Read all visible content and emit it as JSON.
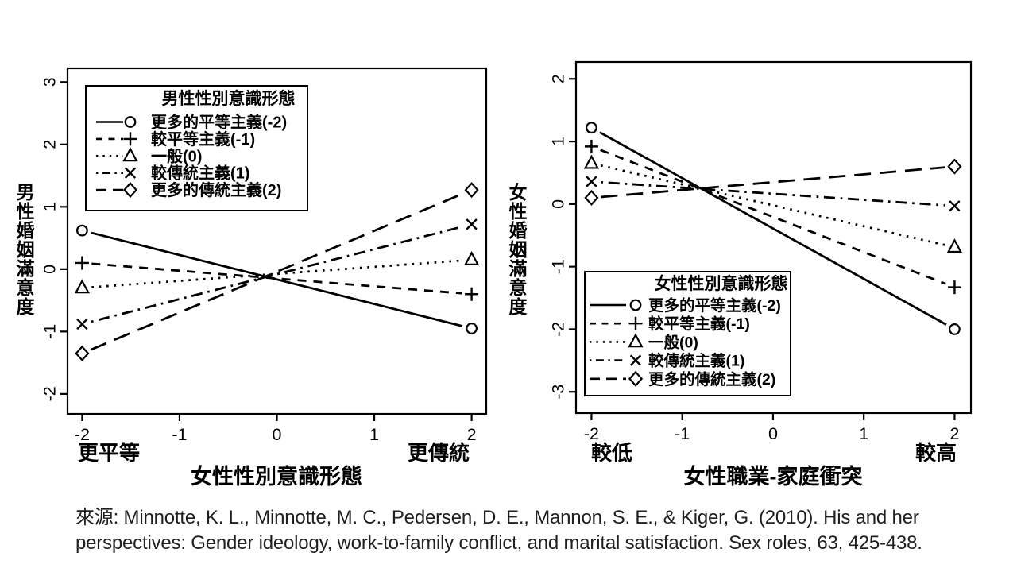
{
  "caption": {
    "lines": [
      "來源: Minnotte, K. L., Minnotte, M. C., Pedersen, D. E., Mannon, S. E., & Kiger, G. (2010). His and her",
      "perspectives: Gender ideology, work-to-family conflict, and marital satisfaction. Sex roles, 63, 425-438."
    ]
  },
  "colors": {
    "ink": "#000000",
    "background": "#ffffff",
    "caption_text": "#1f1f1f"
  },
  "chart_data": [
    {
      "type": "line",
      "title": "",
      "ylabel": "男性婚姻滿意度",
      "xlabel": "女性性別意識形態",
      "x_end_labels": [
        "更平等",
        "更傳統"
      ],
      "legend_title": "男性性別意識形態",
      "legend_position": "top-left",
      "grid": false,
      "x": [
        -2,
        2
      ],
      "xticks": [
        -2,
        -1,
        0,
        1,
        2
      ],
      "yticks": [
        3,
        2,
        1,
        0,
        -1,
        -2
      ],
      "xlim": [
        -2.15,
        2.15
      ],
      "ylim": [
        -2.32,
        3.22
      ],
      "series": [
        {
          "name": "更多的平等主義(-2)",
          "marker": "circle",
          "linestyle": "solid",
          "values": [
            0.62,
            -0.95
          ]
        },
        {
          "name": "較平等主義(-1)",
          "marker": "plus",
          "linestyle": "dashed",
          "values": [
            0.1,
            -0.4
          ]
        },
        {
          "name": "一般(0)",
          "marker": "triangle",
          "linestyle": "dotted",
          "values": [
            -0.3,
            0.15
          ]
        },
        {
          "name": "較傳統主義(1)",
          "marker": "x",
          "linestyle": "dashdot",
          "values": [
            -0.88,
            0.72
          ]
        },
        {
          "name": "更多的傳統主義(2)",
          "marker": "diamond",
          "linestyle": "longdash",
          "values": [
            -1.35,
            1.27
          ]
        }
      ]
    },
    {
      "type": "line",
      "title": "",
      "ylabel": "女性婚姻滿意度",
      "xlabel": "女性職業-家庭衝突",
      "x_end_labels": [
        "較低",
        "較高"
      ],
      "legend_title": "女性性別意識形態",
      "legend_position": "bottom-left",
      "grid": false,
      "x": [
        -2,
        2
      ],
      "xticks": [
        -2,
        -1,
        0,
        1,
        2
      ],
      "yticks": [
        2,
        1,
        0,
        -1,
        -2,
        -3
      ],
      "xlim": [
        -2.17,
        2.18
      ],
      "ylim": [
        -3.34,
        2.27
      ],
      "series": [
        {
          "name": "更多的平等主義(-2)",
          "marker": "circle",
          "linestyle": "solid",
          "values": [
            1.22,
            -2.0
          ]
        },
        {
          "name": "較平等主義(-1)",
          "marker": "plus",
          "linestyle": "dashed",
          "values": [
            0.92,
            -1.33
          ]
        },
        {
          "name": "一般(0)",
          "marker": "triangle",
          "linestyle": "dotted",
          "values": [
            0.65,
            -0.69
          ]
        },
        {
          "name": "較傳統主義(1)",
          "marker": "x",
          "linestyle": "dashdot",
          "values": [
            0.36,
            -0.03
          ]
        },
        {
          "name": "更多的傳統主義(2)",
          "marker": "diamond",
          "linestyle": "longdash",
          "values": [
            0.1,
            0.6
          ]
        }
      ]
    }
  ]
}
